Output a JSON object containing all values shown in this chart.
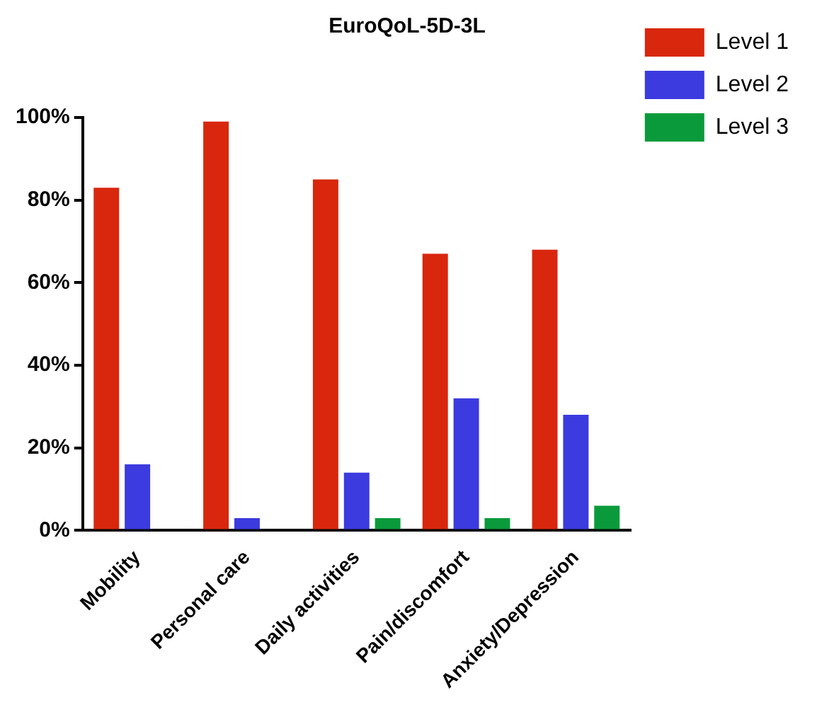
{
  "chart_data": {
    "type": "bar",
    "title": "EuroQoL-5D-3L",
    "categories": [
      "Mobility",
      "Personal care",
      "Daily activities",
      "Pain/discomfort",
      "Anxiety/Depression"
    ],
    "series": [
      {
        "name": "Level 1",
        "color": "#d8270d",
        "values": [
          83,
          99,
          85,
          67,
          68
        ]
      },
      {
        "name": "Level 2",
        "color": "#3b3bdf",
        "values": [
          16,
          3,
          14,
          32,
          28
        ]
      },
      {
        "name": "Level 3",
        "color": "#0b9a3b",
        "values": [
          0,
          0,
          3,
          3,
          6
        ]
      }
    ],
    "ylim": [
      0,
      100
    ],
    "yticks": [
      {
        "value": 0,
        "label": "0%"
      },
      {
        "value": 20,
        "label": "20%"
      },
      {
        "value": 40,
        "label": "40%"
      },
      {
        "value": 60,
        "label": "60%"
      },
      {
        "value": 80,
        "label": "80%"
      },
      {
        "value": 100,
        "label": "100%"
      }
    ],
    "grid": false,
    "legend": "top right"
  }
}
